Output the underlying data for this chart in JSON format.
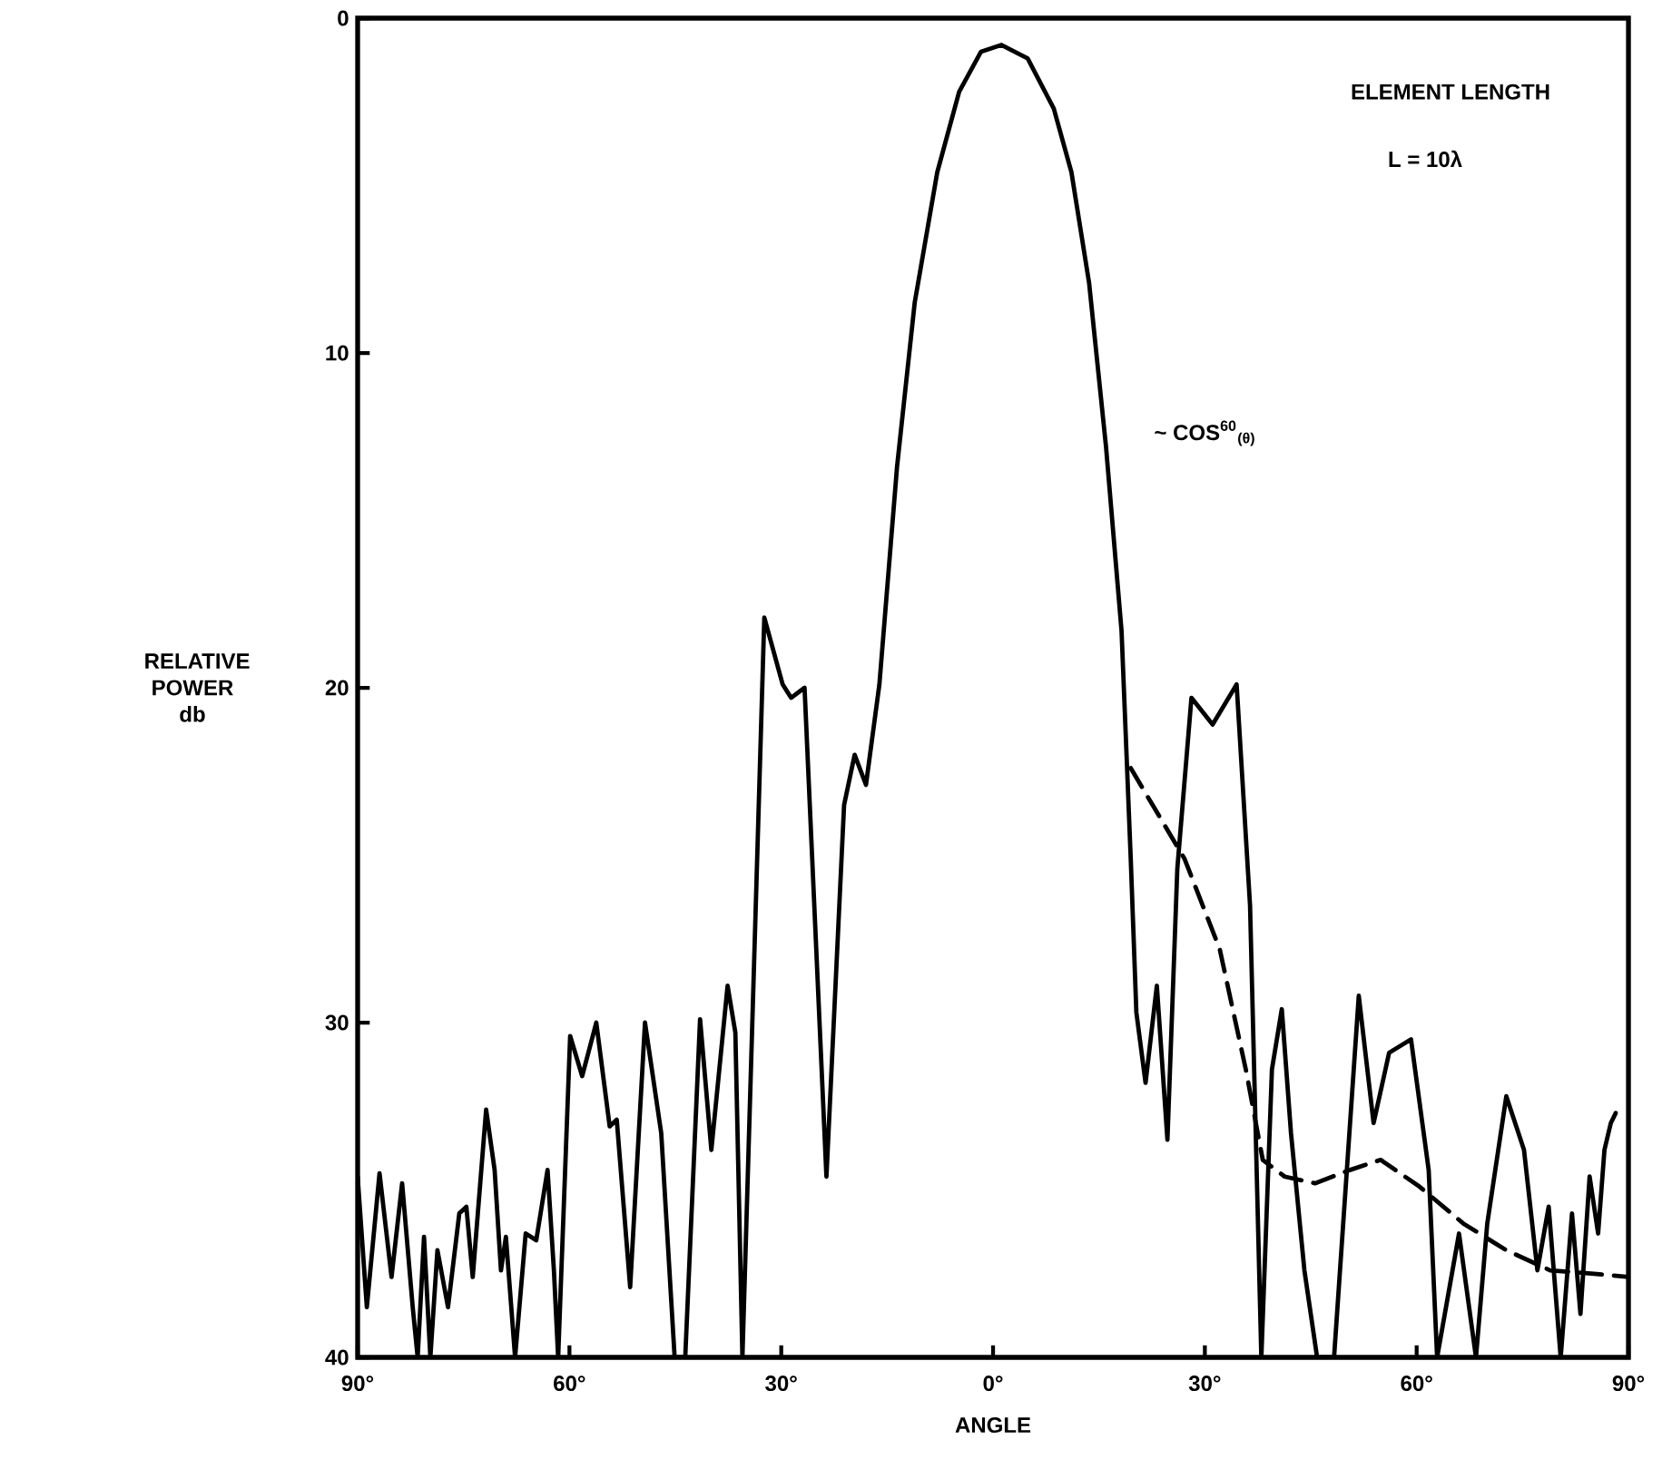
{
  "chart_data": {
    "type": "line",
    "xlabel": "ANGLE",
    "ylabel": "RELATIVE POWER db",
    "annotations": [
      "ELEMENT LENGTH",
      "L = 10λ"
    ],
    "xlim": [
      -90,
      90
    ],
    "ylim": [
      40,
      0
    ],
    "xticks": [
      {
        "value": -90,
        "label": "90°"
      },
      {
        "value": -60,
        "label": "60°"
      },
      {
        "value": -30,
        "label": "30°"
      },
      {
        "value": 0,
        "label": "0°"
      },
      {
        "value": 30,
        "label": "30°"
      },
      {
        "value": 60,
        "label": "60°"
      },
      {
        "value": 90,
        "label": "90°"
      }
    ],
    "yticks": [
      0,
      10,
      20,
      30,
      40
    ],
    "grid": false,
    "legend": false,
    "marker": "none",
    "series": [
      {
        "color": "#000000",
        "line_style": "solid",
        "x": [
          -90,
          -88.7,
          -86.9,
          -85.2,
          -83.7,
          -82.2,
          -81.5,
          -80.6,
          -79.7,
          -78.7,
          -77.2,
          -75.6,
          -74.6,
          -73.7,
          -71.8,
          -70.6,
          -69.7,
          -69,
          -67.7,
          -66.2,
          -64.7,
          -63.1,
          -62.2,
          -61.6,
          -59.9,
          -58.2,
          -56.2,
          -54.3,
          -53.3,
          -51.4,
          -49.3,
          -47,
          -45.1,
          -43.6,
          -41.5,
          -39.9,
          -37.6,
          -36.5,
          -35.5,
          -32.4,
          -29.8,
          -28.6,
          -26.7,
          -23.6,
          -21.1,
          -19.6,
          -18,
          -16.1,
          -13.6,
          -11.1,
          -7.9,
          -4.8,
          -1.7,
          1.2,
          4.9,
          8.6,
          11.1,
          13.6,
          16,
          18.2,
          19.5,
          20.3,
          21.6,
          23.2,
          24.7,
          26.1,
          28.1,
          31.1,
          34.5,
          36.4,
          38,
          39.5,
          40.9,
          42.2,
          44.1,
          45.9,
          48.3,
          51.8,
          53.9,
          56.1,
          59.2,
          61.7,
          62.9,
          66,
          68.4,
          70,
          72.7,
          75.2,
          77.1,
          78.7,
          80.4,
          82,
          83.2,
          84.5,
          85.7,
          86.6,
          87.5,
          88.2
        ],
        "values": [
          34.6,
          38.5,
          34.5,
          37.6,
          34.8,
          38.5,
          40,
          36.4,
          40,
          36.8,
          38.5,
          35.7,
          35.5,
          37.6,
          32.6,
          34.4,
          37.4,
          36.4,
          40,
          36.3,
          36.5,
          34.4,
          37.4,
          40,
          30.4,
          31.6,
          30,
          33.1,
          32.9,
          37.9,
          30,
          33.3,
          40,
          40,
          29.9,
          33.8,
          28.9,
          30.3,
          40,
          17.9,
          19.9,
          20.3,
          20,
          34.6,
          23.5,
          22,
          22.9,
          19.9,
          13.4,
          8.5,
          4.6,
          2.2,
          1,
          0.8,
          1.2,
          2.7,
          4.6,
          7.9,
          12.8,
          18.3,
          25.1,
          29.7,
          31.8,
          28.9,
          33.5,
          25.4,
          20.3,
          21.1,
          19.9,
          26.5,
          40,
          31.4,
          29.6,
          33.3,
          37.4,
          40,
          40,
          29.2,
          33,
          30.9,
          30.5,
          34.4,
          40,
          36.3,
          40,
          36,
          32.2,
          33.8,
          37.4,
          35.5,
          40,
          35.7,
          38.7,
          34.6,
          36.3,
          33.8,
          33,
          32.7
        ]
      },
      {
        "name": "~ COS$^{60}$$_{(θ)}$",
        "color": "#000000",
        "line_style": "dashed",
        "x": [
          19.5,
          27.1,
          32.1,
          35.8,
          38.2,
          41.3,
          45.6,
          50.6,
          54.9,
          60.4,
          66.6,
          72.7,
          78.9,
          85.1,
          90
        ],
        "values": [
          22.4,
          25.1,
          27.8,
          31.4,
          34.1,
          34.6,
          34.8,
          34.4,
          34.1,
          34.9,
          36,
          36.8,
          37.4,
          37.5,
          37.6
        ]
      }
    ]
  }
}
